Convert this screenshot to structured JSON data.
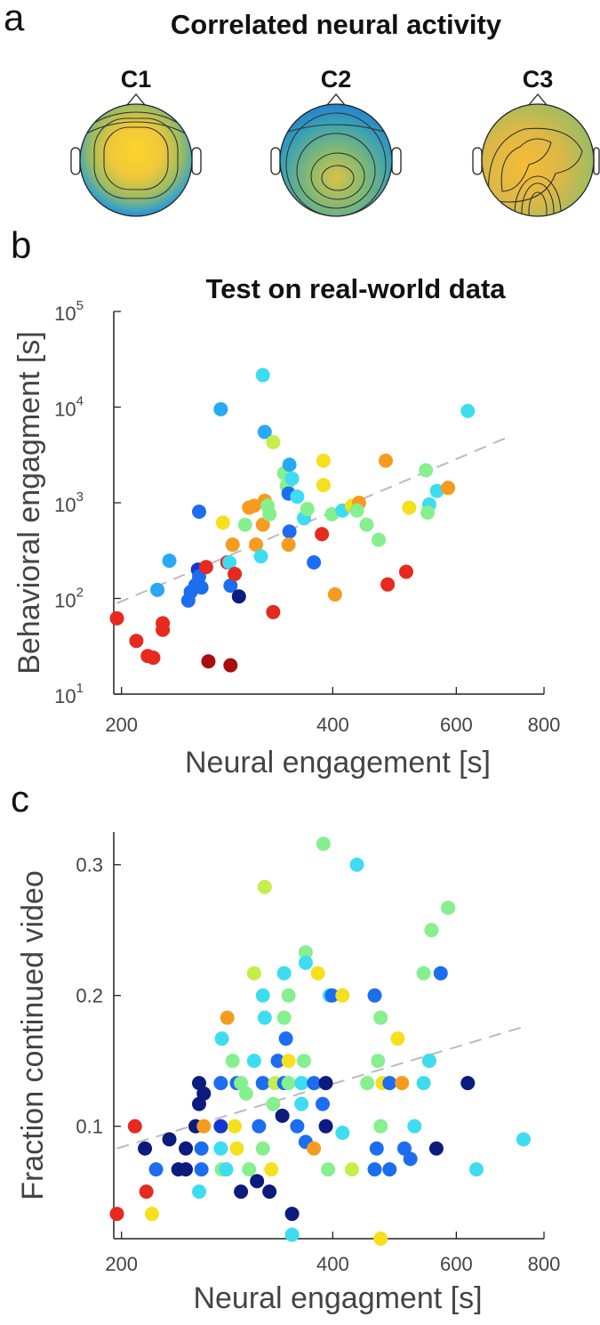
{
  "panel_a": {
    "label": "a",
    "title": "Correlated neural activity",
    "maps": [
      "C1",
      "C2",
      "C3"
    ]
  },
  "chart_data": [
    {
      "type": "scatter",
      "label": "b",
      "title": "Test on real-world data",
      "xlabel": "Neural engagement [s]",
      "ylabel": "Behavioral engagment [s]",
      "xscale": "log",
      "yscale": "log",
      "xlim": [
        195,
        800
      ],
      "ylim": [
        10,
        100000
      ],
      "xticks": [
        200,
        400,
        600,
        800
      ],
      "yticks": [
        {
          "value": 10,
          "label": "10",
          "exponent": "1"
        },
        {
          "value": 100,
          "label": "10",
          "exponent": "2"
        },
        {
          "value": 1000,
          "label": "10",
          "exponent": "3"
        },
        {
          "value": 10000,
          "label": "10",
          "exponent": "4"
        },
        {
          "value": 100000,
          "label": "10",
          "exponent": "5"
        }
      ],
      "x": [
        197,
        210,
        218,
        222,
        229,
        229,
        225,
        234,
        249,
        251,
        255,
        257,
        258,
        260,
        258,
        264,
        266,
        286,
        329,
        277,
        279,
        283,
        285,
        286,
        288,
        290,
        294,
        300,
        304,
        309,
        311,
        316,
        318,
        320,
        318,
        320,
        329,
        323,
        325,
        341,
        344,
        346,
        347,
        350,
        356,
        347,
        346,
        364,
        368,
        376,
        386,
        388,
        388,
        399,
        403,
        413,
        426,
        436,
        433,
        447,
        465,
        476,
        479,
        509,
        514,
        543,
        549,
        546,
        563,
        584,
        623
      ],
      "y": [
        62,
        36,
        25,
        24,
        55,
        47,
        123,
        248,
        95,
        117,
        138,
        200,
        170,
        130,
        807,
        213,
        22,
        20,
        72,
        9500,
        620,
        238,
        238,
        136,
        365,
        180,
        105,
        590,
        890,
        930,
        365,
        275,
        590,
        1050,
        21600,
        5500,
        4300,
        930,
        760,
        2040,
        1500,
        1250,
        2500,
        1790,
        1160,
        500,
        365,
        690,
        860,
        238,
        470,
        1530,
        2750,
        760,
        110,
        830,
        930,
        1000,
        830,
        590,
        410,
        2750,
        140,
        190,
        890,
        2190,
        960,
        790,
        1330,
        1430,
        9100
      ],
      "colors": [
        "#e62a1e",
        "#e62a1e",
        "#e62a1e",
        "#e62a1e",
        "#e62a1e",
        "#e62a1e",
        "#29a8f4",
        "#29a8f4",
        "#1c6df0",
        "#1c6df0",
        "#1c6df0",
        "#1238d4",
        "#1c6df0",
        "#1c6df0",
        "#1c6df0",
        "#e62a1e",
        "#a80e0e",
        "#a80e0e",
        "#e62a1e",
        "#29a8f4",
        "#f6df1d",
        "#e62a1e",
        "#3edcf0",
        "#1c6df0",
        "#f79b1f",
        "#e62a1e",
        "#0c1b7e",
        "#86ef8e",
        "#f79b1f",
        "#f79b1f",
        "#f79b1f",
        "#3edcf0",
        "#f79b1f",
        "#f79b1f",
        "#3edcf0",
        "#29a8f4",
        "#c4ee4a",
        "#86ef8e",
        "#86ef8e",
        "#86ef8e",
        "#86ef8e",
        "#1c6df0",
        "#29a8f4",
        "#3edcf0",
        "#3edcf0",
        "#1c6df0",
        "#f79b1f",
        "#3edcf0",
        "#86ef8e",
        "#1c6df0",
        "#e62a1e",
        "#f6df1d",
        "#f6df1d",
        "#86ef8e",
        "#f79b1f",
        "#3edcf0",
        "#f6df1d",
        "#f79b1f",
        "#86ef8e",
        "#86ef8e",
        "#86ef8e",
        "#f79b1f",
        "#e62a1e",
        "#e62a1e",
        "#f6df1d",
        "#86ef8e",
        "#3edcf0",
        "#86ef8e",
        "#3edcf0",
        "#f79b1f",
        "#3edcf0"
      ],
      "fit": {
        "x": [
          197,
          707
        ],
        "y": [
          89,
          4780
        ],
        "color": "#bbbbbb"
      }
    },
    {
      "type": "scatter",
      "label": "c",
      "xlabel": "Neural engagment [s]",
      "ylabel": "Fraction continued video",
      "xscale": "log",
      "yscale": "linear",
      "xlim": [
        195,
        800
      ],
      "ylim": [
        0.014,
        0.325
      ],
      "xticks": [
        200,
        400,
        600,
        800
      ],
      "yticks": [
        0.1,
        0.2,
        0.3
      ],
      "x": [
        197,
        209,
        217,
        221,
        216,
        224,
        234,
        241,
        247,
        247,
        258,
        255,
        258,
        258,
        262,
        260,
        260,
        262,
        277,
        277,
        277,
        278,
        282,
        283,
        278,
        288,
        292,
        290,
        292,
        296,
        296,
        301,
        304,
        309,
        309,
        312,
        314,
        318,
        318,
        320,
        320,
        325,
        327,
        329,
        331,
        334,
        341,
        341,
        341,
        339,
        343,
        346,
        346,
        350,
        350,
        356,
        361,
        361,
        364,
        366,
        366,
        366,
        376,
        376,
        381,
        388,
        387,
        391,
        391,
        394,
        396,
        399,
        413,
        413,
        426,
        433,
        448,
        459,
        462,
        464,
        459,
        468,
        468,
        471,
        468,
        482,
        482,
        495,
        502,
        506,
        516,
        523,
        539,
        549,
        553,
        539,
        562,
        570,
        549,
        584,
        623,
        641,
        748,
        318,
        346
      ],
      "y": [
        0.033,
        0.1,
        0.05,
        0.033,
        0.083,
        0.067,
        0.09,
        0.067,
        0.083,
        0.067,
        0.05,
        0.1,
        0.117,
        0.133,
        0.125,
        0.083,
        0.067,
        0.1,
        0.133,
        0.1,
        0.083,
        0.067,
        0.067,
        0.183,
        0.167,
        0.15,
        0.133,
        0.1,
        0.083,
        0.05,
        0.133,
        0.125,
        0.067,
        0.217,
        0.15,
        0.058,
        0.1,
        0.083,
        0.133,
        0.183,
        0.283,
        0.05,
        0.067,
        0.117,
        0.133,
        0.15,
        0.133,
        0.217,
        0.183,
        0.108,
        0.167,
        0.133,
        0.15,
        0.017,
        0.033,
        0.1,
        0.133,
        0.117,
        0.15,
        0.088,
        0.233,
        0.225,
        0.133,
        0.083,
        0.217,
        0.316,
        0.117,
        0.133,
        0.1,
        0.067,
        0.2,
        0.2,
        0.2,
        0.095,
        0.067,
        0.3,
        0.133,
        0.067,
        0.083,
        0.15,
        0.2,
        0.183,
        0.1,
        0.133,
        0.014,
        0.067,
        0.133,
        0.167,
        0.133,
        0.083,
        0.075,
        0.1,
        0.133,
        0.15,
        0.25,
        0.217,
        0.083,
        0.217,
        0.15,
        0.267,
        0.133,
        0.067,
        0.09,
        0.2,
        0.2
      ],
      "colors": [
        "#e62a1e",
        "#e62a1e",
        "#e62a1e",
        "#f6df1d",
        "#0c1b7e",
        "#1c6df0",
        "#0c1b7e",
        "#0c1b7e",
        "#0c1b7e",
        "#0c1b7e",
        "#3edcf0",
        "#0c1b7e",
        "#0c1b7e",
        "#0c1b7e",
        "#0c1b7e",
        "#1c6df0",
        "#1c6df0",
        "#f79b1f",
        "#1c6df0",
        "#1238d4",
        "#3edcf0",
        "#86ef8e",
        "#3edcf0",
        "#f79b1f",
        "#3edcf0",
        "#86ef8e",
        "#1c6df0",
        "#f6df1d",
        "#f6df1d",
        "#0c1b7e",
        "#86ef8e",
        "#86ef8e",
        "#86ef8e",
        "#c4ee4a",
        "#3edcf0",
        "#0c1b7e",
        "#1c6df0",
        "#86ef8e",
        "#1c6df0",
        "#3edcf0",
        "#c4ee4a",
        "#0c1b7e",
        "#f6df1d",
        "#86ef8e",
        "#c4ee4a",
        "#1c6df0",
        "#1c6df0",
        "#3edcf0",
        "#86ef8e",
        "#0c1b7e",
        "#1c6df0",
        "#86ef8e",
        "#f6df1d",
        "#3edcf0",
        "#0c1b7e",
        "#1c6df0",
        "#3edcf0",
        "#3edcf0",
        "#86ef8e",
        "#1c6df0",
        "#86ef8e",
        "#3edcf0",
        "#1c6df0",
        "#f79b1f",
        "#f6df1d",
        "#86ef8e",
        "#1c6df0",
        "#0c1b7e",
        "#0c1b7e",
        "#86ef8e",
        "#3edcf0",
        "#1c6df0",
        "#f6df1d",
        "#3edcf0",
        "#c4ee4a",
        "#3edcf0",
        "#86ef8e",
        "#1c6df0",
        "#1c6df0",
        "#86ef8e",
        "#1c6df0",
        "#86ef8e",
        "#86ef8e",
        "#f6df1d",
        "#f6df1d",
        "#1c6df0",
        "#1c6df0",
        "#f6df1d",
        "#f79b1f",
        "#1c6df0",
        "#1c6df0",
        "#3edcf0",
        "#3edcf0",
        "#f79b1f",
        "#86ef8e",
        "#86ef8e",
        "#0c1b7e",
        "#1c6df0",
        "#3edcf0",
        "#86ef8e",
        "#0c1b7e",
        "#3edcf0",
        "#3edcf0",
        "#3edcf0",
        "#86ef8e"
      ],
      "fit": {
        "x": [
          197,
          748
        ],
        "y": [
          0.083,
          0.176
        ],
        "color": "#bbbbbb"
      }
    }
  ]
}
